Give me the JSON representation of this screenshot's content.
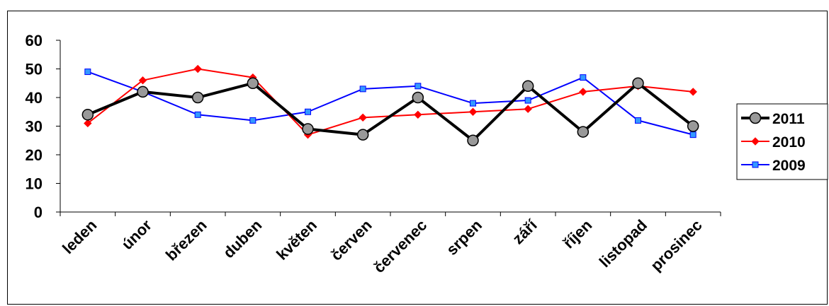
{
  "chart_data": {
    "type": "line",
    "title": "",
    "xlabel": "",
    "ylabel": "",
    "categories": [
      "leden",
      "únor",
      "březen",
      "duben",
      "květen",
      "červen",
      "červenec",
      "srpen",
      "září",
      "říjen",
      "listopad",
      "prosinec"
    ],
    "ylim": [
      0,
      60
    ],
    "yticks": [
      "0",
      "10",
      "20",
      "30",
      "40",
      "50",
      "60"
    ],
    "grid": false,
    "legend": "right",
    "series": [
      {
        "name": "2011",
        "color": "#000000",
        "marker": "circle",
        "marker_fill": "#999999",
        "values": [
          34,
          42,
          40,
          45,
          29,
          27,
          40,
          25,
          44,
          28,
          45,
          30
        ]
      },
      {
        "name": "2010",
        "color": "#ff0000",
        "marker": "diamond",
        "marker_fill": "#ff0000",
        "values": [
          31,
          46,
          50,
          47,
          27,
          33,
          34,
          35,
          36,
          42,
          44,
          42
        ]
      },
      {
        "name": "2009",
        "color": "#0000ff",
        "marker": "square",
        "marker_fill": "#3399ff",
        "values": [
          49,
          42,
          34,
          32,
          35,
          43,
          44,
          38,
          39,
          47,
          32,
          27
        ]
      }
    ]
  }
}
